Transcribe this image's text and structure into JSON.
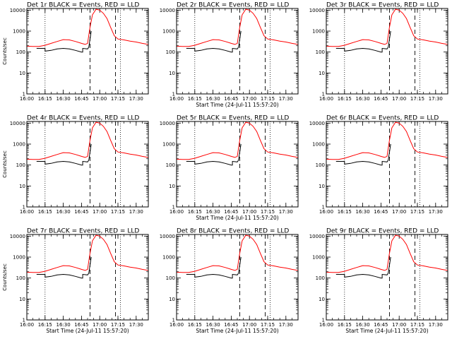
{
  "chart_data": {
    "type": "line",
    "x_unit": "time",
    "x_range": [
      "16:00",
      "17:40"
    ],
    "x_ticks": [
      "16:00",
      "16:15",
      "16:30",
      "16:45",
      "17:00",
      "17:15",
      "17:30"
    ],
    "y_scale": "log",
    "y_range": [
      1,
      12000
    ],
    "y_ticks": [
      "1",
      "10",
      "100",
      "1000",
      "10000"
    ],
    "ylabel": "Counts/sec",
    "xlabel": "Start Time (24-Jul-11 15:57:20)",
    "dotted_lines": [
      "16:15",
      "17:17"
    ],
    "dashed_lines": [
      "16:52",
      "17:13"
    ],
    "red_series": {
      "name": "LLD",
      "x": [
        "16:00",
        "16:05",
        "16:10",
        "16:15",
        "16:20",
        "16:25",
        "16:30",
        "16:35",
        "16:40",
        "16:45",
        "16:48",
        "16:50",
        "16:52",
        "16:54",
        "16:57",
        "17:00",
        "17:03",
        "17:06",
        "17:09",
        "17:12",
        "17:15",
        "17:20",
        "17:25",
        "17:30",
        "17:35",
        "17:40"
      ],
      "y": [
        190,
        185,
        185,
        210,
        260,
        320,
        390,
        380,
        320,
        260,
        230,
        260,
        1500,
        6000,
        11000,
        10000,
        7000,
        4000,
        1500,
        600,
        420,
        380,
        330,
        300,
        260,
        230
      ]
    },
    "black_series": {
      "name": "Events",
      "x": [
        "16:08",
        "16:15",
        "16:15",
        "16:20",
        "16:25",
        "16:30",
        "16:35",
        "16:40",
        "16:45",
        "16:46",
        "16:46",
        "16:50",
        "16:51",
        "16:53"
      ],
      "y": [
        150,
        150,
        110,
        120,
        140,
        150,
        140,
        120,
        100,
        100,
        150,
        140,
        170,
        1000
      ]
    },
    "panels": [
      {
        "title": "Det 1r BLACK = Events, RED = LLD",
        "show_xlabel": false
      },
      {
        "title": "Det 2r BLACK = Events, RED = LLD",
        "show_xlabel": true
      },
      {
        "title": "Det 3r BLACK = Events, RED = LLD",
        "show_xlabel": false
      },
      {
        "title": "Det 4r BLACK = Events, RED = LLD",
        "show_xlabel": false
      },
      {
        "title": "Det 5r BLACK = Events, RED = LLD",
        "show_xlabel": true
      },
      {
        "title": "Det 6r BLACK = Events, RED = LLD",
        "show_xlabel": false
      },
      {
        "title": "Det 7r BLACK = Events, RED = LLD",
        "show_xlabel": true
      },
      {
        "title": "Det 8r BLACK = Events, RED = LLD",
        "show_xlabel": true
      },
      {
        "title": "Det 9r BLACK = Events, RED = LLD",
        "show_xlabel": true
      }
    ],
    "ylabel_panels": [
      0,
      3,
      6
    ],
    "colors": {
      "red": "#ff0000",
      "black": "#000000"
    }
  }
}
